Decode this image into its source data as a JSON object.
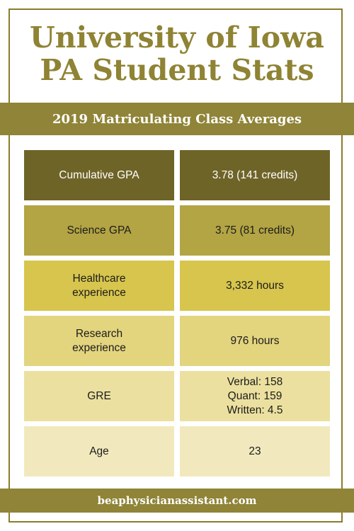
{
  "title": {
    "line1": "University of Iowa",
    "line2": "PA Student Stats"
  },
  "banner": "2019 Matriculating Class Averages",
  "rows": [
    {
      "label": "Cumulative GPA",
      "value": "3.78 (141 credits)",
      "color": "#6f6428",
      "dark": true
    },
    {
      "label": "Science GPA",
      "value": "3.75 (81 credits)",
      "color": "#b3a444",
      "dark": false
    },
    {
      "label": "Healthcare\nexperience",
      "value": "3,332 hours",
      "color": "#d7c54d",
      "dark": false
    },
    {
      "label": "Research\nexperience",
      "value": "976 hours",
      "color": "#e3d47e",
      "dark": false
    },
    {
      "label": "GRE",
      "value": "Verbal: 158\nQuant: 159\nWritten: 4.5",
      "color": "#ebe09f",
      "dark": false
    },
    {
      "label": "Age",
      "value": "23",
      "color": "#f1e9bd",
      "dark": false
    }
  ],
  "footer": "beaphysicianassistant.com"
}
